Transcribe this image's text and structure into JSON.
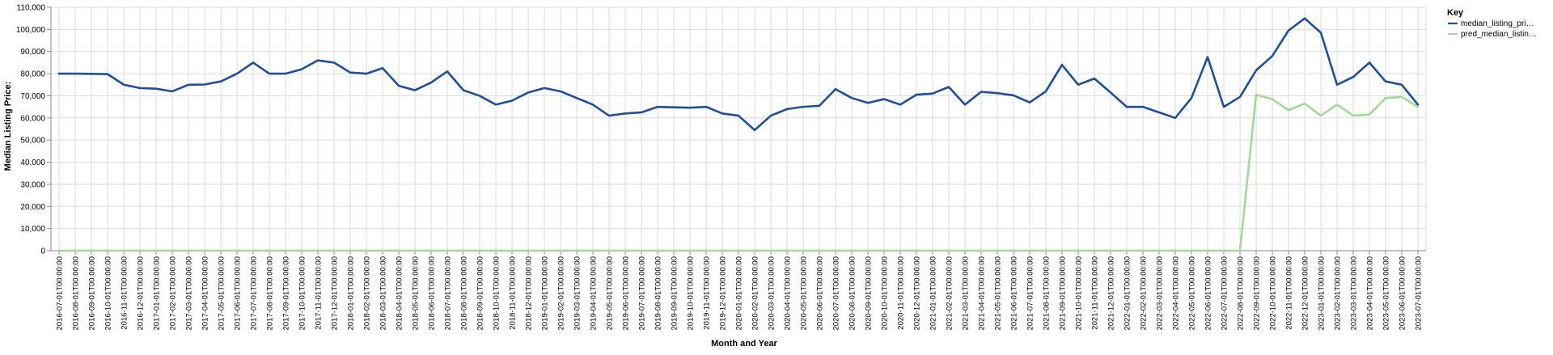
{
  "chart_data": {
    "type": "line",
    "xlabel": "Month and Year",
    "ylabel": "Median Listing Price:",
    "ylim": [
      0,
      110000
    ],
    "yticks": [
      0,
      10000,
      20000,
      30000,
      40000,
      50000,
      60000,
      70000,
      80000,
      90000,
      100000,
      110000
    ],
    "ytick_labels": [
      "0",
      "10,000",
      "20,000",
      "30,000",
      "40,000",
      "50,000",
      "60,000",
      "70,000",
      "80,000",
      "90,000",
      "100,000",
      "110,000"
    ],
    "grid": true,
    "legend": {
      "title": "Key",
      "position": "right",
      "entries": [
        "median_listing_pri…",
        "pred_median_listin…"
      ]
    },
    "x": [
      "2016-07-01T00:00:00",
      "2016-08-01T00:00:00",
      "2016-09-01T00:00:00",
      "2016-10-01T00:00:00",
      "2016-11-01T00:00:00",
      "2016-12-01T00:00:00",
      "2017-01-01T00:00:00",
      "2017-02-01T00:00:00",
      "2017-03-01T00:00:00",
      "2017-04-01T00:00:00",
      "2017-05-01T00:00:00",
      "2017-06-01T00:00:00",
      "2017-07-01T00:00:00",
      "2017-08-01T00:00:00",
      "2017-09-01T00:00:00",
      "2017-10-01T00:00:00",
      "2017-11-01T00:00:00",
      "2017-12-01T00:00:00",
      "2018-01-01T00:00:00",
      "2018-02-01T00:00:00",
      "2018-03-01T00:00:00",
      "2018-04-01T00:00:00",
      "2018-05-01T00:00:00",
      "2018-06-01T00:00:00",
      "2018-07-01T00:00:00",
      "2018-08-01T00:00:00",
      "2018-09-01T00:00:00",
      "2018-10-01T00:00:00",
      "2018-11-01T00:00:00",
      "2018-12-01T00:00:00",
      "2019-01-01T00:00:00",
      "2019-02-01T00:00:00",
      "2019-03-01T00:00:00",
      "2019-04-01T00:00:00",
      "2019-05-01T00:00:00",
      "2019-06-01T00:00:00",
      "2019-07-01T00:00:00",
      "2019-08-01T00:00:00",
      "2019-09-01T00:00:00",
      "2019-10-01T00:00:00",
      "2019-11-01T00:00:00",
      "2019-12-01T00:00:00",
      "2020-01-01T00:00:00",
      "2020-02-01T00:00:00",
      "2020-03-01T00:00:00",
      "2020-04-01T00:00:00",
      "2020-05-01T00:00:00",
      "2020-06-01T00:00:00",
      "2020-07-01T00:00:00",
      "2020-08-01T00:00:00",
      "2020-09-01T00:00:00",
      "2020-10-01T00:00:00",
      "2020-11-01T00:00:00",
      "2020-12-01T00:00:00",
      "2021-01-01T00:00:00",
      "2021-02-01T00:00:00",
      "2021-03-01T00:00:00",
      "2021-04-01T00:00:00",
      "2021-05-01T00:00:00",
      "2021-06-01T00:00:00",
      "2021-07-01T00:00:00",
      "2021-08-01T00:00:00",
      "2021-09-01T00:00:00",
      "2021-10-01T00:00:00",
      "2021-11-01T00:00:00",
      "2021-12-01T00:00:00",
      "2022-01-01T00:00:00",
      "2022-02-01T00:00:00",
      "2022-03-01T00:00:00",
      "2022-04-01T00:00:00",
      "2022-05-01T00:00:00",
      "2022-06-01T00:00:00",
      "2022-07-01T00:00:00",
      "2022-08-01T00:00:00",
      "2022-09-01T00:00:00",
      "2022-10-01T00:00:00",
      "2022-11-01T00:00:00",
      "2022-12-01T00:00:00",
      "2023-01-01T00:00:00",
      "2023-02-01T00:00:00",
      "2023-03-01T00:00:00",
      "2023-04-01T00:00:00",
      "2023-05-01T00:00:00",
      "2023-06-01T00:00:00",
      "2023-07-01T00:00:00"
    ],
    "series": [
      {
        "name": "median_listing_pri…",
        "color": "#1f4e9a",
        "values": [
          80000,
          80000,
          79900,
          79800,
          75000,
          73500,
          73200,
          72000,
          75000,
          75100,
          76500,
          80000,
          85000,
          80000,
          80000,
          82000,
          86000,
          85000,
          80500,
          80000,
          82500,
          74500,
          72500,
          76000,
          81000,
          72500,
          70000,
          66000,
          67800,
          71500,
          73500,
          72000,
          69000,
          66000,
          61000,
          62000,
          62500,
          65000,
          64800,
          64600,
          65000,
          62000,
          61000,
          54500,
          61000,
          64000,
          65000,
          65500,
          73000,
          69000,
          66800,
          68500,
          66000,
          70500,
          71000,
          74000,
          66000,
          71800,
          71200,
          70200,
          67000,
          72000,
          84000,
          75000,
          77800,
          71500,
          65000,
          65000,
          62500,
          60000,
          69000,
          87500,
          65000,
          69500,
          81500,
          88000,
          99500,
          105000,
          98500,
          75000,
          78500,
          85000,
          76500,
          75000,
          66000
        ]
      },
      {
        "name": "pred_median_listin…",
        "color": "#a3d89a",
        "values": [
          0,
          0,
          0,
          0,
          0,
          0,
          0,
          0,
          0,
          0,
          0,
          0,
          0,
          0,
          0,
          0,
          0,
          0,
          0,
          0,
          0,
          0,
          0,
          0,
          0,
          0,
          0,
          0,
          0,
          0,
          0,
          0,
          0,
          0,
          0,
          0,
          0,
          0,
          0,
          0,
          0,
          0,
          0,
          0,
          0,
          0,
          0,
          0,
          0,
          0,
          0,
          0,
          0,
          0,
          0,
          0,
          0,
          0,
          0,
          0,
          0,
          0,
          0,
          0,
          0,
          0,
          0,
          0,
          0,
          0,
          0,
          0,
          0,
          0,
          70500,
          68500,
          63500,
          66500,
          61000,
          66000,
          61000,
          61500,
          69000,
          69500,
          65000
        ]
      }
    ]
  }
}
